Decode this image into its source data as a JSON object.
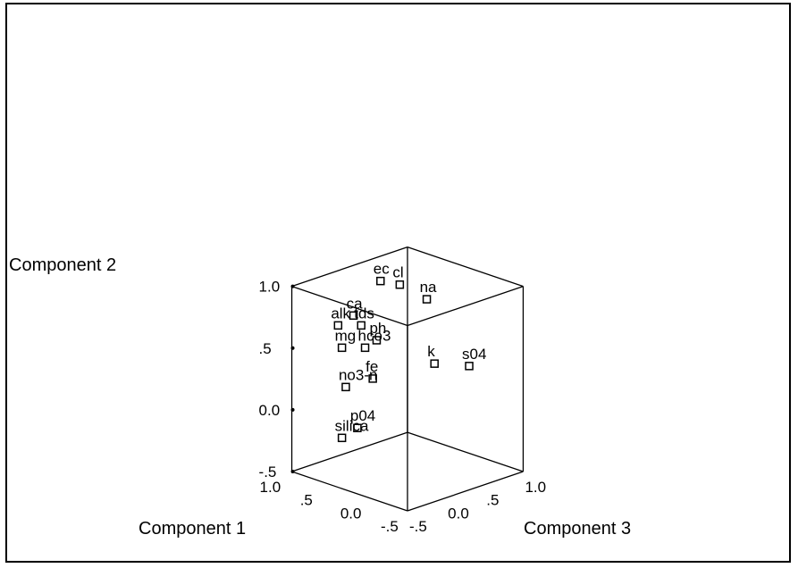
{
  "chart_data": {
    "type": "scatter",
    "projection": "3d",
    "grid": false,
    "axes": {
      "x": {
        "label": "Component 1",
        "range": [
          -0.5,
          1.0
        ],
        "tick_labels": [
          "1.0",
          ".5",
          "0.0",
          "-.5"
        ]
      },
      "y": {
        "label": "Component 2",
        "range": [
          -0.5,
          1.0
        ],
        "tick_labels": [
          "1.0",
          ".5",
          "0.0",
          "-.5"
        ]
      },
      "z": {
        "label": "Component 3",
        "range": [
          -0.5,
          1.0
        ],
        "tick_labels": [
          "1.0",
          ".5",
          "0.0",
          "-.5"
        ]
      }
    },
    "points": [
      {
        "label": "ec",
        "x": 0.55,
        "y": 0.99,
        "z": 0.2
      },
      {
        "label": "cl",
        "x": 0.45,
        "y": 0.95,
        "z": 0.35
      },
      {
        "label": "na",
        "x": 0.35,
        "y": 0.8,
        "z": 0.6
      },
      {
        "label": "ca",
        "x": 0.75,
        "y": 0.7,
        "z": 0.05
      },
      {
        "label": "alk",
        "x": 0.85,
        "y": 0.62,
        "z": -0.05
      },
      {
        "label": "tds",
        "x": 0.7,
        "y": 0.62,
        "z": 0.1
      },
      {
        "label": "ph",
        "x": 0.6,
        "y": 0.5,
        "z": 0.2
      },
      {
        "label": "mg",
        "x": 0.8,
        "y": 0.45,
        "z": -0.05
      },
      {
        "label": "hco3",
        "x": 0.65,
        "y": 0.45,
        "z": 0.1
      },
      {
        "label": "k",
        "x": 0.25,
        "y": 0.3,
        "z": 0.6
      },
      {
        "label": "s04",
        "x": 0.05,
        "y": 0.27,
        "z": 0.85
      },
      {
        "label": "fe",
        "x": 0.6,
        "y": 0.2,
        "z": 0.15
      },
      {
        "label": "no3-n",
        "x": 0.85,
        "y": 0.1,
        "z": 0.05
      },
      {
        "label": "p04",
        "x": 0.7,
        "y": -0.2,
        "z": 0.05
      },
      {
        "label": "silica",
        "x": 0.8,
        "y": -0.28,
        "z": -0.05
      }
    ]
  }
}
